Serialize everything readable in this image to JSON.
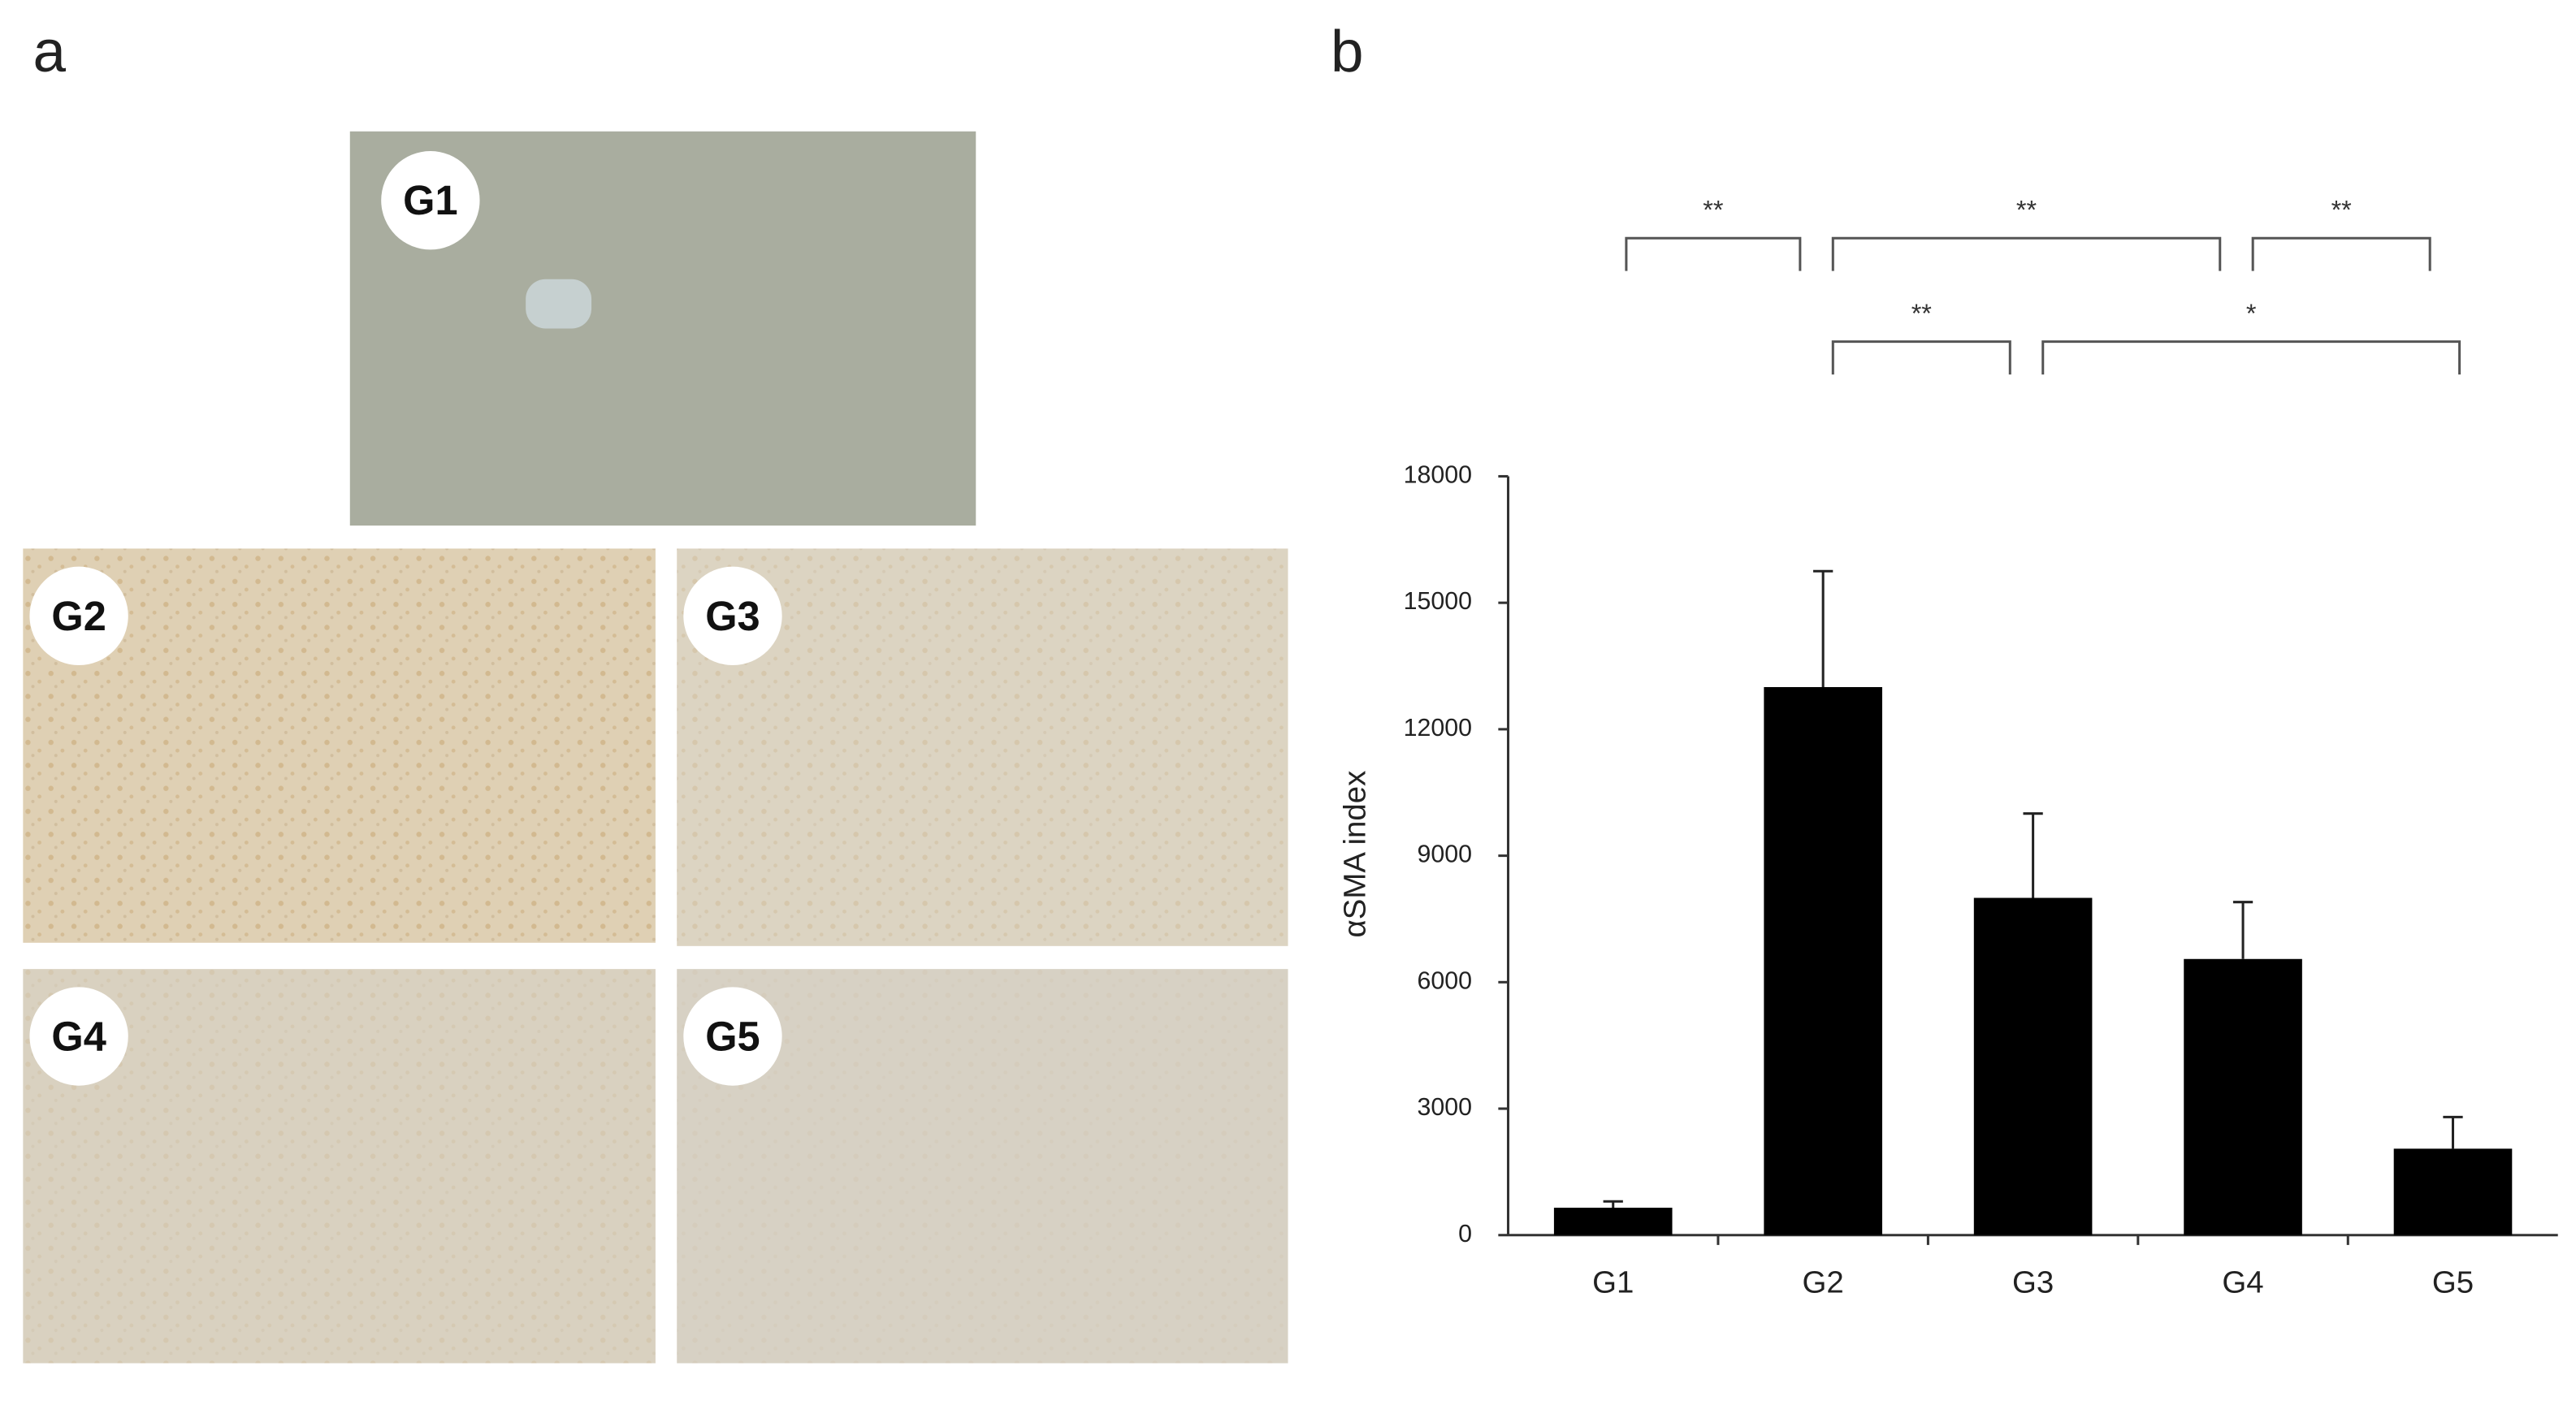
{
  "panels": {
    "a": {
      "label": "a",
      "images": [
        {
          "label": "G1"
        },
        {
          "label": "G2"
        },
        {
          "label": "G3"
        },
        {
          "label": "G4"
        },
        {
          "label": "G5"
        }
      ]
    },
    "b": {
      "label": "b"
    }
  },
  "chart_data": {
    "type": "bar",
    "y_label": "αSMA index",
    "categories": [
      "G1",
      "G2",
      "G3",
      "G4",
      "G5"
    ],
    "values": [
      650,
      13000,
      8000,
      6550,
      2050
    ],
    "errors": [
      150,
      2750,
      2000,
      1350,
      750
    ],
    "color": "#000000",
    "ylim": [
      0,
      18000
    ],
    "yticks": [
      0,
      3000,
      6000,
      9000,
      12000,
      15000,
      18000
    ],
    "grid": false,
    "brackets": [
      {
        "from": "G1",
        "to": "G2",
        "label": "**"
      },
      {
        "from": "G2",
        "to": "G4",
        "label": "**"
      },
      {
        "from": "G4",
        "to": "G5",
        "label": "**"
      },
      {
        "from": "G2",
        "to": "G3",
        "label": "**"
      },
      {
        "from": "G3",
        "to": "G5",
        "label": "*"
      }
    ]
  }
}
